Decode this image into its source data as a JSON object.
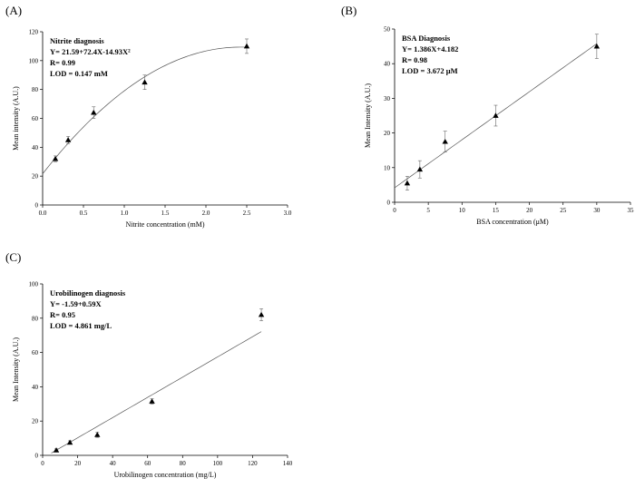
{
  "chart_data": [
    {
      "type": "scatter",
      "panel": "(A)",
      "annotations": [
        "Nitrite diagnosis",
        "Y= 21.59+72.4X-14.93X²",
        "R= 0.99",
        "LOD = 0.147 mM"
      ],
      "xlabel": "Nitrite concentration (mM)",
      "ylabel": "Mean intensity (A.U.)",
      "xlim": [
        0,
        3.0
      ],
      "ylim": [
        0,
        120
      ],
      "xticks": [
        "0.0",
        "0.5",
        "1.0",
        "1.5",
        "2.0",
        "2.5",
        "3.0"
      ],
      "yticks": [
        "0",
        "20",
        "40",
        "60",
        "80",
        "100",
        "120"
      ],
      "x": [
        0.156,
        0.3125,
        0.625,
        1.25,
        2.5
      ],
      "y": [
        32,
        45,
        64,
        85,
        110
      ],
      "err": [
        2,
        2.5,
        4,
        5,
        5
      ],
      "fit": {
        "kind": "poly2",
        "coef": [
          21.59,
          72.4,
          -14.93
        ],
        "xrange": [
          0,
          2.5
        ]
      },
      "grid": false
    },
    {
      "type": "scatter",
      "panel": "(B)",
      "annotations": [
        "BSA Diagnosis",
        "Y= 1.386X+4.182",
        "R= 0.98",
        "LOD = 3.672 μM"
      ],
      "xlabel": "BSA concentration (μM)",
      "ylabel": "Mean Intensity (A.U.)",
      "xlim": [
        0,
        35
      ],
      "ylim": [
        0,
        50
      ],
      "xticks": [
        "0",
        "5",
        "10",
        "15",
        "20",
        "25",
        "30",
        "35"
      ],
      "yticks": [
        "0",
        "10",
        "20",
        "30",
        "40",
        "50"
      ],
      "x": [
        1.875,
        3.75,
        7.5,
        15,
        30
      ],
      "y": [
        5.5,
        9.5,
        17.5,
        25,
        45
      ],
      "err": [
        2,
        2.5,
        3,
        3,
        3.5
      ],
      "fit": {
        "kind": "linear",
        "coef": [
          4.182,
          1.386
        ],
        "xrange": [
          0,
          30
        ]
      },
      "grid": false
    },
    {
      "type": "scatter",
      "panel": "(C)",
      "annotations": [
        "Urobilinogen diagnosis",
        "Y= -1.59+0.59X",
        "R= 0.95",
        "LOD = 4.861 mg/L"
      ],
      "xlabel": "Urobilinogen concentration (mg/L)",
      "ylabel": "Mean Intensity (A.U.)",
      "xlim": [
        0,
        140
      ],
      "ylim": [
        0,
        100
      ],
      "xticks": [
        "0",
        "20",
        "40",
        "60",
        "80",
        "100",
        "120",
        "140"
      ],
      "yticks": [
        "0",
        "20",
        "40",
        "60",
        "80",
        "100"
      ],
      "x": [
        7.8,
        15.6,
        31.25,
        62.5,
        125
      ],
      "y": [
        3,
        7.5,
        12,
        31.5,
        82
      ],
      "err": [
        0.8,
        1,
        1.5,
        1.5,
        3.5
      ],
      "fit": {
        "kind": "linear",
        "coef": [
          -1.59,
          0.59
        ],
        "xrange": [
          5,
          125
        ]
      },
      "grid": false
    }
  ]
}
